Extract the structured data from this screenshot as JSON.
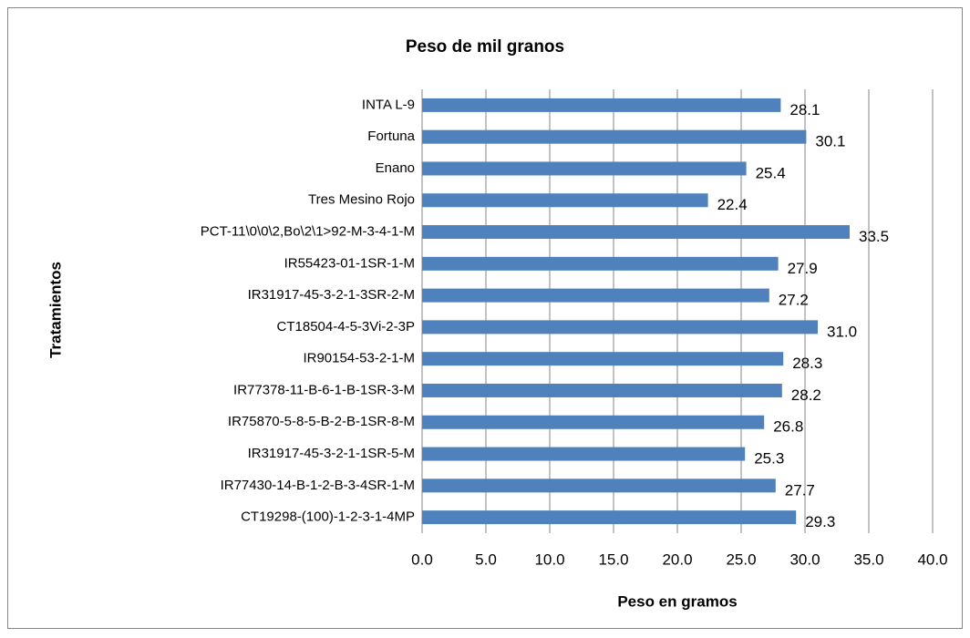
{
  "chart_data": {
    "type": "barh",
    "title": "Peso de mil granos",
    "xlabel": "Peso en gramos",
    "ylabel": "Tratamientos",
    "categories": [
      "INTA L-9",
      "Fortuna",
      "Enano",
      "Tres Mesino Rojo",
      "PCT-11\\0\\0\\2,Bo\\2\\1>92-M-3-4-1-M",
      "IR55423-01-1SR-1-M",
      "IR31917-45-3-2-1-3SR-2-M",
      "CT18504-4-5-3Vi-2-3P",
      "IR90154-53-2-1-M",
      "IR77378-11-B-6-1-B-1SR-3-M",
      "IR75870-5-8-5-B-2-B-1SR-8-M",
      "IR31917-45-3-2-1-1SR-5-M",
      "IR77430-14-B-1-2-B-3-4SR-1-M",
      "CT19298-(100)-1-2-3-1-4MP"
    ],
    "values": [
      28.1,
      30.1,
      25.4,
      22.4,
      33.5,
      27.9,
      27.2,
      31.0,
      28.3,
      28.2,
      26.8,
      25.3,
      27.7,
      29.3
    ],
    "value_labels": [
      "28.1",
      "30.1",
      "25.4",
      "22.4",
      "33.5",
      "27.9",
      "27.2",
      "31.0",
      "28.3",
      "28.2",
      "26.8",
      "25.3",
      "27.7",
      "29.3"
    ],
    "color": "#4f81bd",
    "xlim": [
      0,
      40
    ],
    "xticks": [
      {
        "value": 0,
        "label": "0.0"
      },
      {
        "value": 5,
        "label": "5.0"
      },
      {
        "value": 10,
        "label": "10.0"
      },
      {
        "value": 15,
        "label": "15.0"
      },
      {
        "value": 20,
        "label": "20.0"
      },
      {
        "value": 25,
        "label": "25.0"
      },
      {
        "value": 30,
        "label": "30.0"
      },
      {
        "value": 35,
        "label": "35.0"
      },
      {
        "value": 40,
        "label": "40.0"
      }
    ],
    "grid": true
  }
}
